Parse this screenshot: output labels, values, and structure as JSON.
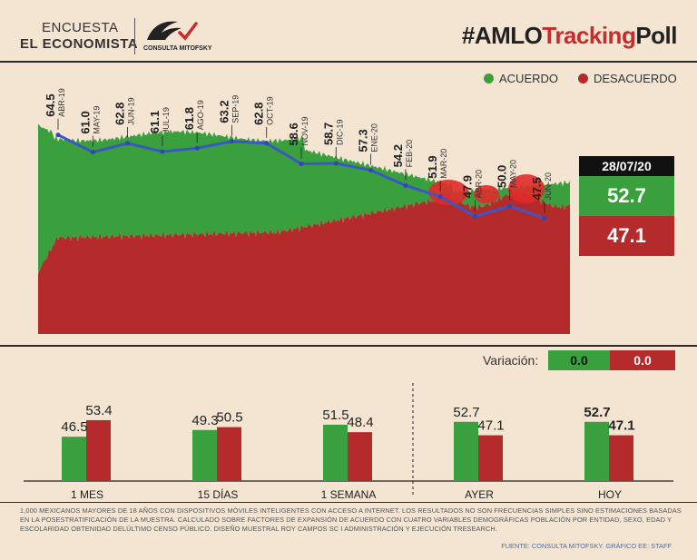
{
  "header": {
    "brand_line1": "ENCUESTA",
    "brand_line2": "EL ECONOMISTA",
    "partner": "CONSULTA MITOFSKY",
    "hashtag_prefix": "#AMLO",
    "hashtag_highlight": "Tracking",
    "hashtag_suffix": "Poll"
  },
  "legend": {
    "acuerdo": "ACUERDO",
    "desacuerdo": "DESACUERDO",
    "acuerdo_color": "#3aa03e",
    "desacuerdo_color": "#b52a2a"
  },
  "today": {
    "date": "28/07/20",
    "acuerdo": "52.7",
    "desacuerdo": "47.1"
  },
  "variacion": {
    "label": "Variación:",
    "acuerdo": "0.0",
    "desacuerdo": "0.0"
  },
  "chart_data": [
    {
      "type": "line",
      "categories": [
        "ABR-19",
        "MAY-19",
        "JUN-19",
        "JUL-19",
        "AGO-19",
        "SEP-19",
        "OCT-19",
        "NOV-19",
        "DIC-19",
        "ENE-20",
        "FEB-20",
        "MAR-20",
        "ABR-20",
        "MAY-20",
        "JUN-20"
      ],
      "series": [
        {
          "name": "",
          "values": [
            64.5,
            61.0,
            62.8,
            61.1,
            61.8,
            63.2,
            62.8,
            58.6,
            58.7,
            57.3,
            54.2,
            51.9,
            47.9,
            50.0,
            47.5
          ]
        }
      ],
      "labels": [
        "64.5",
        "61.0",
        "62.8",
        "61.1",
        "61.8",
        "63.2",
        "62.8",
        "58.6",
        "58.7",
        "57.3",
        "54.2",
        "51.9",
        "47.9",
        "50.0",
        "47.5"
      ]
    },
    {
      "type": "bar",
      "categories": [
        "1 MES",
        "15 DÍAS",
        "1 SEMANA",
        "AYER",
        "HOY"
      ],
      "series": [
        {
          "name": "ACUERDO",
          "values": [
            46.5,
            49.3,
            51.5,
            52.7,
            52.7
          ]
        },
        {
          "name": "DESACUERDO",
          "values": [
            53.4,
            50.5,
            48.4,
            47.1,
            47.1
          ]
        }
      ],
      "labels_ac": [
        "46.5",
        "49.3",
        "51.5",
        "52.7",
        "52.7"
      ],
      "labels_de": [
        "53.4",
        "50.5",
        "48.4",
        "47.1",
        "47.1"
      ]
    }
  ],
  "footnote": "1,000 MEXICANOS MAYORES DE 18 AÑOS CON DISPOSITIVOS MÓVILES INTELIGENTES CON ACCESO A INTERNET. LOS RESULTADOS NO SON FRECUENCIAS SIMPLES SINO ESTIMACIONES BASADAS EN LA POSESTRATIFICACIÓN DE LA MUESTRA. CALCULADO SOBRE FACTORES DE EXPANSIÓN DE ACUERDO CON CUATRO VARIABLES DEMOGRÁFICAS POBLACIÓN POR ENTIDAD, SEXO, EDAD Y ESCOLARIDAD OBTENIDAD DELÚLTIMO CENSO PÚBLICO. DISEÑO MUESTRAL ROY CAMPOS SC I ADMINISTRACIÓN Y EJECUCIÓN TRESEARCH.",
  "source": "FUENTE: CONSULTA MITOFSKY. GRÁFICO EE: STAFF"
}
